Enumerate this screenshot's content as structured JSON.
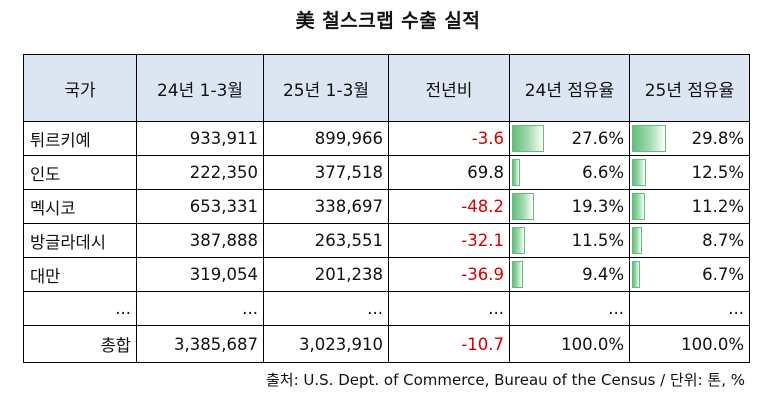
{
  "title": "美 철스크랩 수출 실적",
  "headers": [
    "국가",
    "24년 1-3월",
    "25년 1-3월",
    "전년비",
    "24년 점유율",
    "25년 점유율"
  ],
  "rows": [
    {
      "country": "튀르키예",
      "y24": "933,911",
      "y25": "899,966",
      "yoy": "-3.6",
      "share24": "27.6%",
      "share25": "29.8%",
      "share24_value": 27.6,
      "share25_value": 29.8
    },
    {
      "country": "인도",
      "y24": "222,350",
      "y25": "377,518",
      "yoy": "69.8",
      "share24": "6.6%",
      "share25": "12.5%",
      "share24_value": 6.6,
      "share25_value": 12.5
    },
    {
      "country": "멕시코",
      "y24": "653,331",
      "y25": "338,697",
      "yoy": "-48.2",
      "share24": "19.3%",
      "share25": "11.2%",
      "share24_value": 19.3,
      "share25_value": 11.2
    },
    {
      "country": "방글라데시",
      "y24": "387,888",
      "y25": "263,551",
      "yoy": "-32.1",
      "share24": "11.5%",
      "share25": "8.7%",
      "share24_value": 11.5,
      "share25_value": 8.7
    },
    {
      "country": "대만",
      "y24": "319,054",
      "y25": "201,238",
      "yoy": "-36.9",
      "share24": "9.4%",
      "share25": "6.7%",
      "share24_value": 9.4,
      "share25_value": 6.7
    }
  ],
  "ellipsis_row": [
    "...",
    "...",
    "...",
    "...",
    "...",
    "..."
  ],
  "total": {
    "label": "총합",
    "y24": "3,385,687",
    "y25": "3,023,910",
    "yoy": "-10.7",
    "share24": "100.0%",
    "share25": "100.0%"
  },
  "source": "출처: U.S. Dept. of Commerce, Bureau of the Census / 단위: 톤, %",
  "colors": {
    "header_bg": "#dce6f2",
    "negative": "#d40000",
    "bar": "#63be7b"
  }
}
